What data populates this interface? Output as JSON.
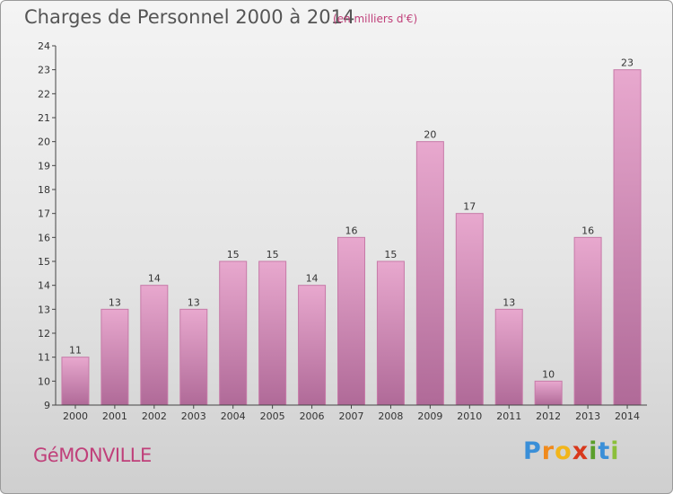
{
  "title": "Charges de Personnel 2000 à 2014",
  "subtitle": "(en milliers d'€)",
  "commune": "GéMONVILLE",
  "logo": {
    "letters": [
      "P",
      "r",
      "o",
      "x",
      "i",
      "t",
      "i"
    ],
    "colors": [
      "#3a8fd8",
      "#f08a1c",
      "#f2b51a",
      "#d8381c",
      "#5a9e2a",
      "#3a8fd8",
      "#8bbf3a"
    ]
  },
  "colors": {
    "bar_top": "#e8a8ce",
    "bar_bottom": "#b06a98",
    "bar_stroke": "#c77aa8",
    "axis": "#444444",
    "accent": "#c0407a"
  },
  "chart_data": {
    "type": "bar",
    "title": "Charges de Personnel 2000 à 2014",
    "subtitle": "(en milliers d'€)",
    "categories": [
      "2000",
      "2001",
      "2002",
      "2003",
      "2004",
      "2005",
      "2006",
      "2007",
      "2008",
      "2009",
      "2010",
      "2011",
      "2012",
      "2013",
      "2014"
    ],
    "values": [
      11,
      13,
      14,
      13,
      15,
      15,
      14,
      16,
      15,
      20,
      17,
      13,
      10,
      16,
      23
    ],
    "ylim": [
      9,
      24
    ],
    "yticks": [
      9,
      10,
      11,
      12,
      13,
      14,
      15,
      16,
      17,
      18,
      19,
      20,
      21,
      22,
      23,
      24
    ],
    "xlabel": "",
    "ylabel": "",
    "grid": false,
    "legend": "none"
  }
}
